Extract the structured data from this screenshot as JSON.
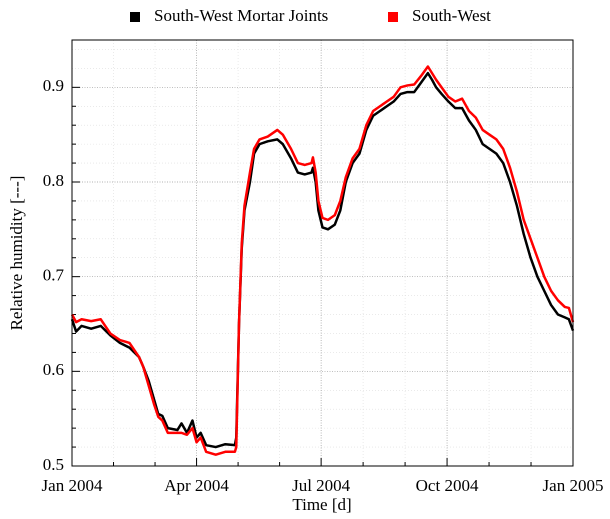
{
  "chart_data": {
    "type": "line",
    "xlabel": "Time [d]",
    "ylabel": "Relative humidity [---]",
    "x": [
      0,
      3,
      7,
      14,
      21,
      28,
      35,
      42,
      49,
      52,
      56,
      60,
      63,
      66,
      70,
      77,
      80,
      84,
      88,
      91,
      94,
      98,
      105,
      112,
      119,
      120,
      122,
      124,
      126,
      130,
      133,
      137,
      143,
      150,
      154,
      160,
      165,
      170,
      175,
      176,
      178,
      180,
      183,
      187,
      192,
      196,
      200,
      205,
      210,
      215,
      220,
      225,
      230,
      235,
      240,
      245,
      250,
      255,
      260,
      263,
      266,
      270,
      275,
      280,
      285,
      290,
      295,
      300,
      305,
      310,
      315,
      320,
      325,
      330,
      335,
      340,
      345,
      350,
      355,
      360,
      363,
      366
    ],
    "series": [
      {
        "name": "South-West Mortar Joints",
        "color": "#000000",
        "values": [
          0.655,
          0.642,
          0.648,
          0.645,
          0.648,
          0.638,
          0.63,
          0.625,
          0.615,
          0.605,
          0.59,
          0.57,
          0.555,
          0.553,
          0.54,
          0.538,
          0.545,
          0.535,
          0.548,
          0.53,
          0.535,
          0.522,
          0.52,
          0.523,
          0.522,
          0.53,
          0.65,
          0.73,
          0.77,
          0.8,
          0.83,
          0.84,
          0.843,
          0.845,
          0.84,
          0.825,
          0.81,
          0.808,
          0.81,
          0.815,
          0.8,
          0.77,
          0.752,
          0.75,
          0.755,
          0.77,
          0.8,
          0.82,
          0.83,
          0.855,
          0.87,
          0.875,
          0.88,
          0.885,
          0.893,
          0.895,
          0.895,
          0.905,
          0.915,
          0.908,
          0.9,
          0.893,
          0.885,
          0.878,
          0.878,
          0.865,
          0.855,
          0.84,
          0.835,
          0.83,
          0.82,
          0.8,
          0.775,
          0.745,
          0.72,
          0.7,
          0.685,
          0.67,
          0.66,
          0.657,
          0.655,
          0.643
        ]
      },
      {
        "name": "South-West",
        "color": "#ff0000",
        "values": [
          0.66,
          0.652,
          0.655,
          0.653,
          0.655,
          0.64,
          0.633,
          0.63,
          0.615,
          0.605,
          0.585,
          0.565,
          0.552,
          0.548,
          0.535,
          0.535,
          0.535,
          0.533,
          0.54,
          0.525,
          0.53,
          0.515,
          0.512,
          0.515,
          0.515,
          0.52,
          0.65,
          0.735,
          0.775,
          0.81,
          0.835,
          0.845,
          0.848,
          0.855,
          0.85,
          0.835,
          0.82,
          0.818,
          0.82,
          0.826,
          0.81,
          0.78,
          0.762,
          0.76,
          0.765,
          0.78,
          0.805,
          0.825,
          0.835,
          0.86,
          0.875,
          0.88,
          0.885,
          0.89,
          0.9,
          0.902,
          0.903,
          0.912,
          0.922,
          0.915,
          0.908,
          0.9,
          0.89,
          0.885,
          0.888,
          0.875,
          0.868,
          0.855,
          0.85,
          0.845,
          0.835,
          0.815,
          0.79,
          0.76,
          0.74,
          0.72,
          0.7,
          0.685,
          0.675,
          0.668,
          0.667,
          0.652
        ]
      }
    ],
    "xlim": [
      0,
      366
    ],
    "xticks": [
      {
        "value": 0,
        "label": "Jan 2004"
      },
      {
        "value": 91,
        "label": "Apr 2004"
      },
      {
        "value": 182,
        "label": "Jul 2004"
      },
      {
        "value": 274,
        "label": "Oct 2004"
      },
      {
        "value": 366,
        "label": "Jan 2005"
      }
    ],
    "ylim": [
      0.5,
      0.95
    ],
    "yticks": [
      0.5,
      0.6,
      0.7,
      0.8,
      0.9
    ],
    "grid": true,
    "legend": "top"
  }
}
